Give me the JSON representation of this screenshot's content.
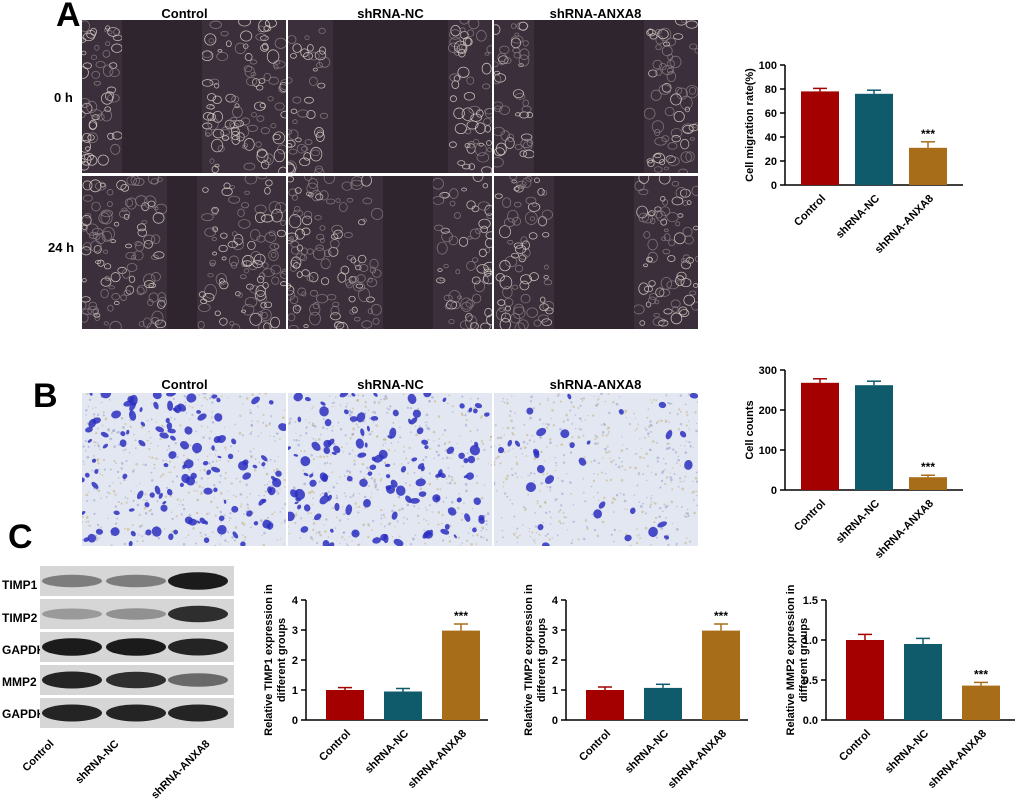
{
  "panels": {
    "a": "A",
    "b": "B",
    "c": "C"
  },
  "groups": [
    "Control",
    "shRNA-NC",
    "shRNA-ANXA8"
  ],
  "wound_rows": [
    "0 h",
    "24 h"
  ],
  "transwell_cols": [
    "Control",
    "shRNA-NC",
    "shRNA-ANXA8"
  ],
  "western": {
    "bands": [
      "TIMP1",
      "TIMP2",
      "GAPDH",
      "MMP2",
      "GAPDH"
    ],
    "lanes": [
      "Control",
      "shRNA-NC",
      "shRNA-ANXA8"
    ]
  },
  "colors": {
    "control": "#a50000",
    "nc": "#0f5a6b",
    "anxa8": "#a86d18"
  },
  "chart_data": [
    {
      "id": "migration",
      "type": "bar",
      "categories": [
        "Control",
        "shRNA-NC",
        "shRNA-ANXA8"
      ],
      "values": [
        78,
        76,
        31
      ],
      "errors": [
        2.5,
        3,
        5
      ],
      "ylabel": "Cell migration rate(%)",
      "ylim": [
        0,
        100
      ],
      "yticks": [
        0,
        20,
        40,
        60,
        80,
        100
      ],
      "annotations": [
        "",
        "",
        "***"
      ]
    },
    {
      "id": "counts",
      "type": "bar",
      "categories": [
        "Control",
        "shRNA-NC",
        "shRNA-ANXA8"
      ],
      "values": [
        268,
        262,
        32
      ],
      "errors": [
        10,
        10,
        5
      ],
      "ylabel": "Cell counts",
      "ylim": [
        0,
        300
      ],
      "yticks": [
        0,
        100,
        200,
        300
      ],
      "annotations": [
        "",
        "",
        "***"
      ]
    },
    {
      "id": "timp1",
      "type": "bar",
      "categories": [
        "Control",
        "shRNA-NC",
        "shRNA-ANXA8"
      ],
      "values": [
        1.0,
        0.95,
        2.98
      ],
      "errors": [
        0.08,
        0.1,
        0.22
      ],
      "ylabel": [
        "Relative TIMP1 expression in",
        "different groups"
      ],
      "ylim": [
        0,
        4
      ],
      "yticks": [
        0,
        1,
        2,
        3,
        4
      ],
      "annotations": [
        "",
        "",
        "***"
      ]
    },
    {
      "id": "timp2",
      "type": "bar",
      "categories": [
        "Control",
        "shRNA-NC",
        "shRNA-ANXA8"
      ],
      "values": [
        1.0,
        1.07,
        2.98
      ],
      "errors": [
        0.1,
        0.12,
        0.22
      ],
      "ylabel": [
        "Relative TIMP2 expression in",
        "different groups"
      ],
      "ylim": [
        0,
        4
      ],
      "yticks": [
        0,
        1,
        2,
        3,
        4
      ],
      "annotations": [
        "",
        "",
        "***"
      ]
    },
    {
      "id": "mmp2",
      "type": "bar",
      "categories": [
        "Control",
        "shRNA-NC",
        "shRNA-ANXA8"
      ],
      "values": [
        1.0,
        0.95,
        0.43
      ],
      "errors": [
        0.07,
        0.07,
        0.04
      ],
      "ylabel": [
        "Relative MMP2 expression in",
        "different groups"
      ],
      "ylim": [
        0,
        1.5
      ],
      "yticks": [
        "0.0",
        "0.5",
        "1.0",
        "1.5"
      ],
      "annotations": [
        "",
        "",
        "***"
      ]
    }
  ]
}
